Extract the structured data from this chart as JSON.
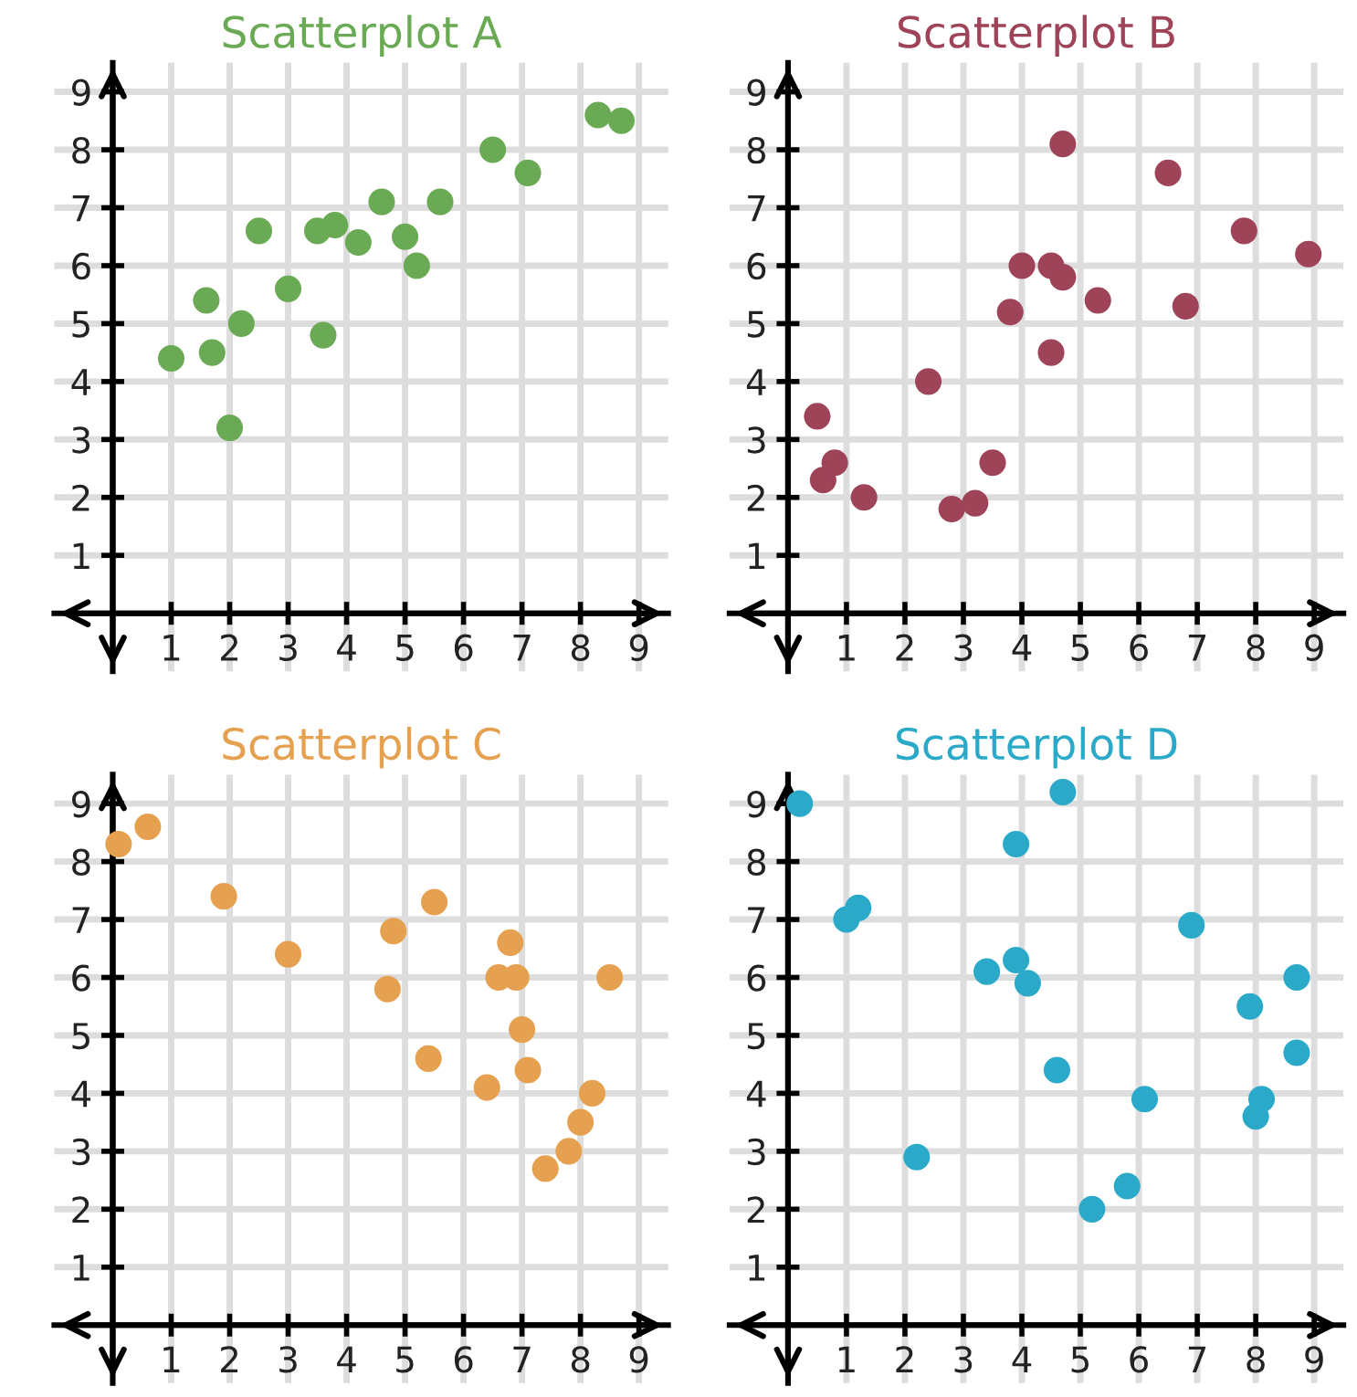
{
  "chart_data": [
    {
      "type": "scatter",
      "title": "Scatterplot A",
      "xlim": [
        -1,
        9.5
      ],
      "ylim": [
        -1,
        9.5
      ],
      "xticks": [
        1,
        2,
        3,
        4,
        5,
        6,
        7,
        8,
        9
      ],
      "yticks": [
        1,
        2,
        3,
        4,
        5,
        6,
        7,
        8,
        9
      ],
      "grid": true,
      "marker": "circle",
      "series": [
        {
          "color": "#6aaa55",
          "x": [
            1.0,
            1.6,
            1.7,
            2.0,
            2.2,
            2.5,
            3.0,
            3.5,
            3.6,
            3.8,
            4.2,
            4.6,
            5.0,
            5.2,
            5.6,
            6.5,
            7.1,
            8.3,
            8.7
          ],
          "values": [
            4.4,
            5.4,
            4.5,
            3.2,
            5.0,
            6.6,
            5.6,
            6.6,
            4.8,
            6.7,
            6.4,
            7.1,
            6.5,
            6.0,
            7.1,
            8.0,
            7.6,
            8.6,
            8.5
          ]
        }
      ]
    },
    {
      "type": "scatter",
      "title": "Scatterplot B",
      "xlim": [
        -1,
        9.5
      ],
      "ylim": [
        -1,
        9.5
      ],
      "xticks": [
        1,
        2,
        3,
        4,
        5,
        6,
        7,
        8,
        9
      ],
      "yticks": [
        1,
        2,
        3,
        4,
        5,
        6,
        7,
        8,
        9
      ],
      "grid": true,
      "marker": "circle",
      "series": [
        {
          "color": "#9e4358",
          "x": [
            0.5,
            0.6,
            0.8,
            1.3,
            2.4,
            2.8,
            3.2,
            3.5,
            3.8,
            4.0,
            4.5,
            4.5,
            4.7,
            4.7,
            5.3,
            6.5,
            6.8,
            7.8,
            8.9
          ],
          "values": [
            3.4,
            2.3,
            2.6,
            2.0,
            4.0,
            1.8,
            1.9,
            2.6,
            5.2,
            6.0,
            6.0,
            4.5,
            5.8,
            8.1,
            5.4,
            7.6,
            5.3,
            6.6,
            6.2
          ]
        }
      ]
    },
    {
      "type": "scatter",
      "title": "Scatterplot C",
      "xlim": [
        -1,
        9.5
      ],
      "ylim": [
        -1,
        9.5
      ],
      "xticks": [
        1,
        2,
        3,
        4,
        5,
        6,
        7,
        8,
        9
      ],
      "yticks": [
        1,
        2,
        3,
        4,
        5,
        6,
        7,
        8,
        9
      ],
      "grid": true,
      "marker": "circle",
      "series": [
        {
          "color": "#e5a050",
          "x": [
            0.1,
            0.6,
            1.9,
            3.0,
            4.7,
            4.8,
            5.4,
            5.5,
            6.4,
            6.6,
            6.8,
            6.9,
            7.0,
            7.1,
            7.4,
            7.8,
            8.0,
            8.2,
            8.5
          ],
          "values": [
            8.3,
            8.6,
            7.4,
            6.4,
            5.8,
            6.8,
            4.6,
            7.3,
            4.1,
            6.0,
            6.6,
            6.0,
            5.1,
            4.4,
            2.7,
            3.0,
            3.5,
            4.0,
            6.0
          ]
        }
      ]
    },
    {
      "type": "scatter",
      "title": "Scatterplot D",
      "xlim": [
        -1,
        9.5
      ],
      "ylim": [
        -1,
        9.5
      ],
      "xticks": [
        1,
        2,
        3,
        4,
        5,
        6,
        7,
        8,
        9
      ],
      "yticks": [
        1,
        2,
        3,
        4,
        5,
        6,
        7,
        8,
        9
      ],
      "grid": true,
      "marker": "circle",
      "series": [
        {
          "color": "#2aaac8",
          "x": [
            0.2,
            1.0,
            1.2,
            2.2,
            3.4,
            3.9,
            3.9,
            4.1,
            4.6,
            4.7,
            5.2,
            5.8,
            6.1,
            6.9,
            7.9,
            8.0,
            8.1,
            8.7,
            8.7
          ],
          "values": [
            9.0,
            7.0,
            7.2,
            2.9,
            6.1,
            6.3,
            8.3,
            5.9,
            4.4,
            9.2,
            2.0,
            2.4,
            3.9,
            6.9,
            5.5,
            3.6,
            3.9,
            6.0,
            4.7
          ]
        }
      ]
    }
  ]
}
